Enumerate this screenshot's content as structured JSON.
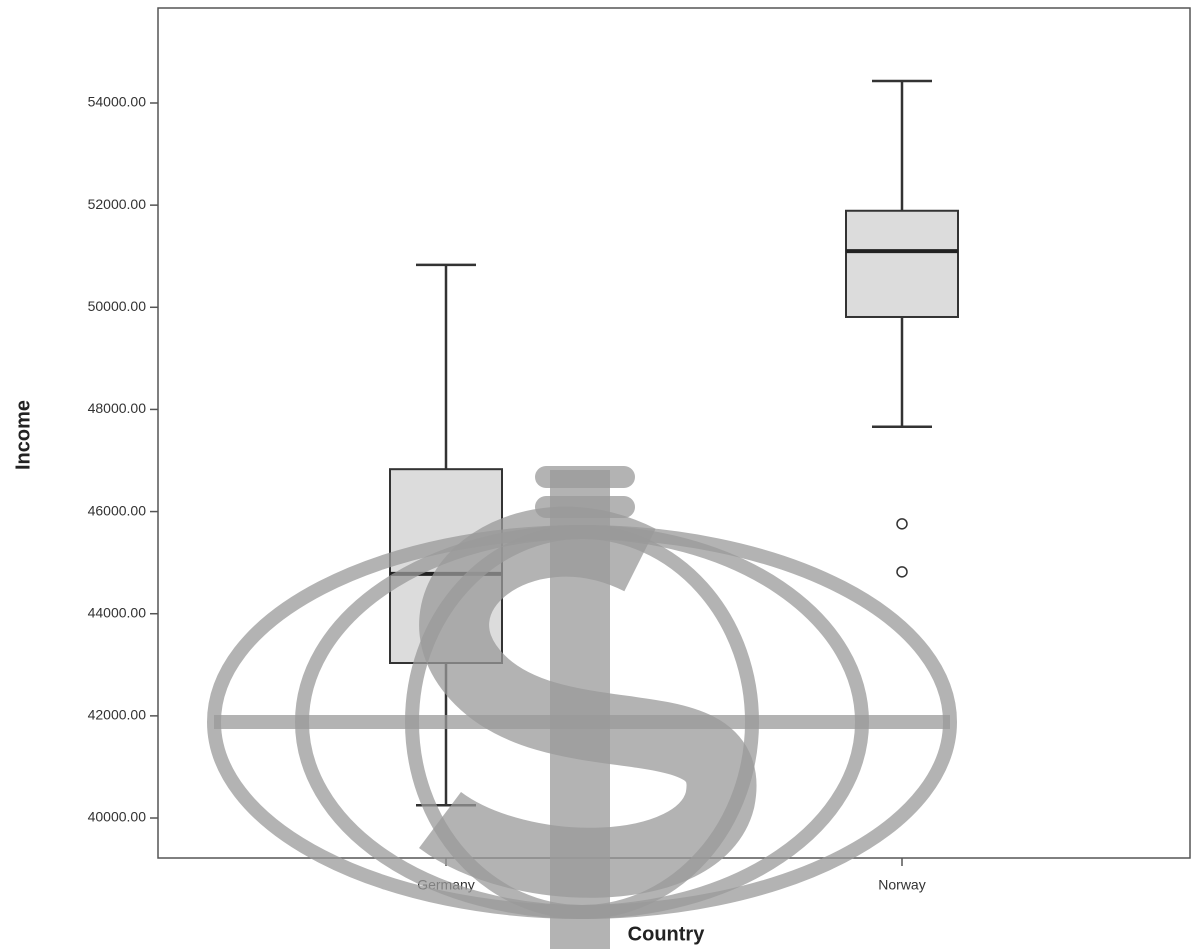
{
  "chart_data": {
    "type": "box",
    "x_label": "Country",
    "y_label": "Income",
    "categories": [
      "Germany",
      "Norway"
    ],
    "color": "#dcdcdc",
    "boxes": [
      {
        "whisker_low": 40250,
        "q1": 43035,
        "median": 44780,
        "q3": 46830,
        "whisker_high": 50830,
        "outliers": []
      },
      {
        "whisker_low": 47660,
        "q1": 49810,
        "median": 51100,
        "q3": 51890,
        "whisker_high": 54430,
        "outliers": [
          45760,
          44820
        ]
      }
    ],
    "ylim": [
      39217,
      55860
    ],
    "yticks": [
      {
        "value": 40000,
        "label": "40000.00"
      },
      {
        "value": 42000,
        "label": "42000.00"
      },
      {
        "value": 44000,
        "label": "44000.00"
      },
      {
        "value": 46000,
        "label": "46000.00"
      },
      {
        "value": 48000,
        "label": "48000.00"
      },
      {
        "value": 50000,
        "label": "50000.00"
      },
      {
        "value": 52000,
        "label": "52000.00"
      },
      {
        "value": 54000,
        "label": "54000.00"
      }
    ]
  }
}
